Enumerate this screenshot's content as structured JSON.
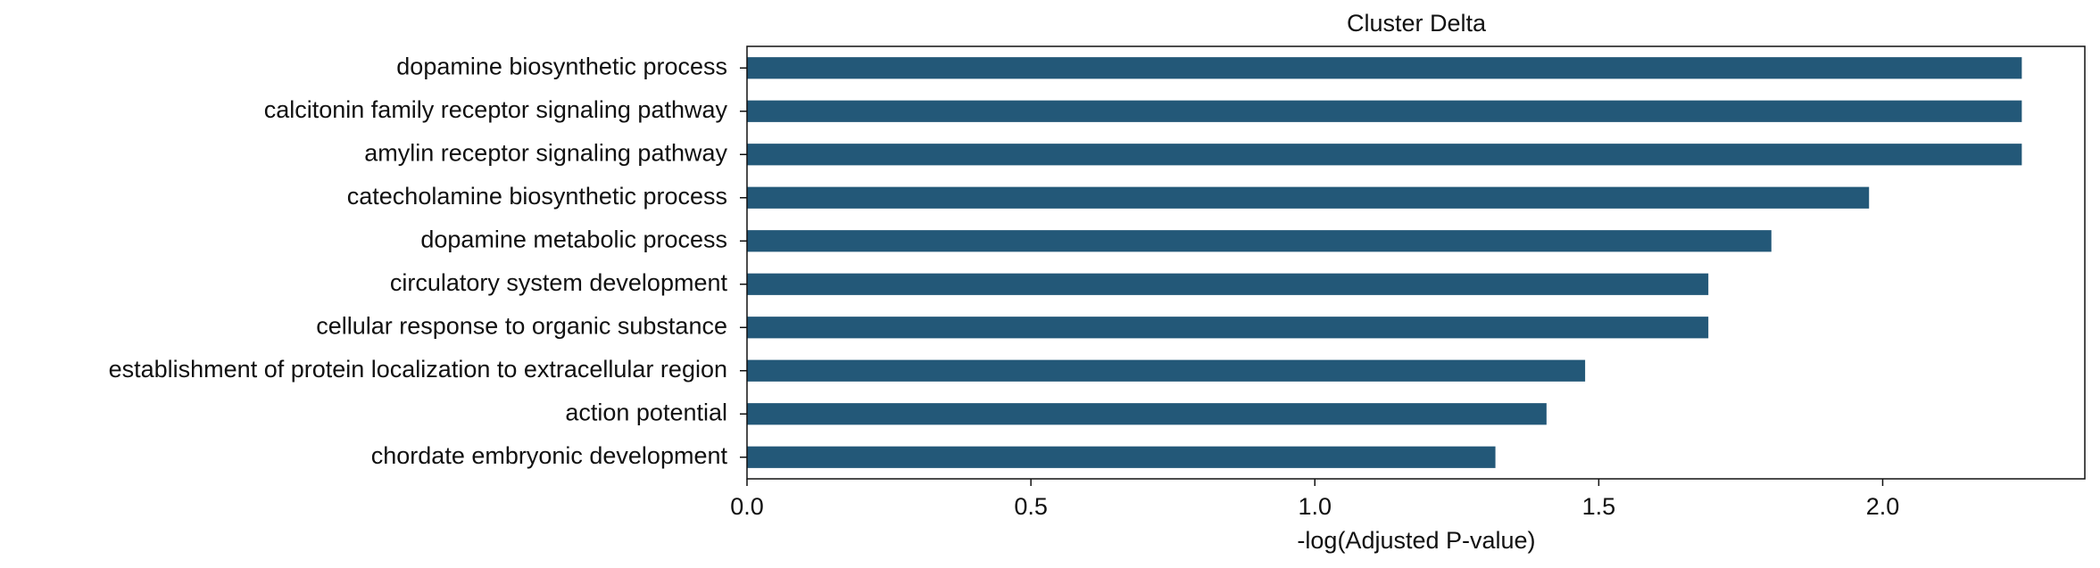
{
  "chart_data": {
    "type": "barh",
    "title": "Cluster Delta",
    "x_label": "-log(Adjusted P-value)",
    "categories": [
      "dopamine biosynthetic process",
      "calcitonin family receptor signaling pathway",
      "amylin receptor signaling pathway",
      "catecholamine biosynthetic process",
      "dopamine metabolic process",
      "circulatory system development",
      "cellular response to organic substance",
      "establishment of protein localization to extracellular region",
      "action potential",
      "chordate embryonic development"
    ],
    "values": [
      2.245,
      2.245,
      2.245,
      1.976,
      1.804,
      1.693,
      1.693,
      1.476,
      1.408,
      1.318
    ],
    "color": "#235878",
    "xlim": [
      0,
      2.356
    ],
    "xticks": [
      {
        "value": 0,
        "label": "0.0"
      },
      0.5,
      {
        "value": 1,
        "label": "1.0"
      },
      1.5,
      {
        "value": 2,
        "label": "2.0"
      }
    ],
    "grid": false
  }
}
